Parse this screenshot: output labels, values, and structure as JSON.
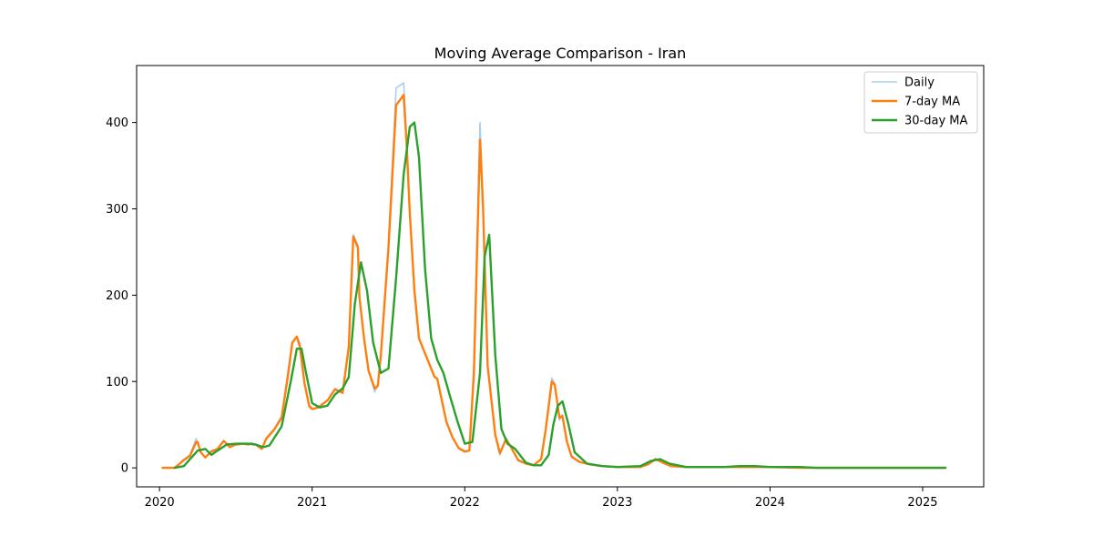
{
  "chart_data": {
    "type": "line",
    "title": "Moving Average Comparison - Iran",
    "xlabel": "",
    "ylabel": "",
    "xlim": [
      2019.85,
      2025.4
    ],
    "ylim": [
      -22,
      466
    ],
    "x_ticks": [
      2020,
      2021,
      2022,
      2023,
      2024,
      2025
    ],
    "x_tick_labels": [
      "2020",
      "2021",
      "2022",
      "2023",
      "2024",
      "2025"
    ],
    "y_ticks": [
      0,
      100,
      200,
      300,
      400
    ],
    "y_tick_labels": [
      "0",
      "100",
      "200",
      "300",
      "400"
    ],
    "grid": false,
    "legend_position": "top-right",
    "series": [
      {
        "name": "Daily",
        "color": "#aecde8",
        "style": "thin",
        "x": [
          2020.02,
          2020.1,
          2020.16,
          2020.2,
          2020.24,
          2020.25,
          2020.27,
          2020.3,
          2020.34,
          2020.38,
          2020.42,
          2020.44,
          2020.46,
          2020.5,
          2020.55,
          2020.58,
          2020.6,
          2020.63,
          2020.67,
          2020.7,
          2020.75,
          2020.8,
          2020.84,
          2020.87,
          2020.9,
          2020.92,
          2020.95,
          2020.98,
          2021.0,
          2021.04,
          2021.1,
          2021.15,
          2021.2,
          2021.24,
          2021.27,
          2021.3,
          2021.31,
          2021.34,
          2021.37,
          2021.41,
          2021.43,
          2021.45,
          2021.5,
          2021.55,
          2021.6,
          2021.62,
          2021.64,
          2021.67,
          2021.7,
          2021.75,
          2021.8,
          2021.82,
          2021.85,
          2021.88,
          2021.92,
          2021.96,
          2022.0,
          2022.03,
          2022.06,
          2022.1,
          2022.12,
          2022.15,
          2022.2,
          2022.23,
          2022.27,
          2022.3,
          2022.35,
          2022.4,
          2022.45,
          2022.5,
          2022.53,
          2022.57,
          2022.59,
          2022.62,
          2022.64,
          2022.67,
          2022.7,
          2022.75,
          2022.82,
          2022.9,
          2023.0,
          2023.15,
          2023.2,
          2023.25,
          2023.3,
          2023.35,
          2023.45,
          2023.6,
          2023.7,
          2023.8,
          2023.9,
          2024.0,
          2024.2,
          2024.3,
          2024.6,
          2024.9,
          2025.15
        ],
        "values": [
          0,
          0,
          10,
          15,
          34,
          28,
          18,
          12,
          20,
          22,
          32,
          28,
          24,
          27,
          28,
          27,
          29,
          27,
          22,
          35,
          45,
          60,
          110,
          145,
          152,
          145,
          100,
          70,
          68,
          70,
          78,
          92,
          86,
          140,
          270,
          258,
          200,
          150,
          112,
          88,
          95,
          130,
          260,
          440,
          446,
          380,
          300,
          210,
          150,
          128,
          105,
          103,
          78,
          52,
          35,
          22,
          18,
          20,
          120,
          400,
          310,
          120,
          38,
          15,
          35,
          25,
          8,
          5,
          3,
          10,
          45,
          104,
          98,
          55,
          62,
          30,
          12,
          7,
          4,
          2,
          1,
          1,
          4,
          11,
          5,
          2,
          1,
          1,
          1,
          1,
          1,
          1,
          0,
          0,
          0,
          0,
          0
        ]
      },
      {
        "name": "7-day MA",
        "color": "#ff7f0e",
        "style": "thick",
        "x": [
          2020.02,
          2020.1,
          2020.16,
          2020.2,
          2020.24,
          2020.25,
          2020.27,
          2020.3,
          2020.34,
          2020.38,
          2020.42,
          2020.44,
          2020.46,
          2020.5,
          2020.55,
          2020.58,
          2020.6,
          2020.63,
          2020.67,
          2020.7,
          2020.75,
          2020.8,
          2020.84,
          2020.87,
          2020.9,
          2020.92,
          2020.95,
          2020.98,
          2021.0,
          2021.04,
          2021.1,
          2021.15,
          2021.2,
          2021.24,
          2021.27,
          2021.3,
          2021.31,
          2021.34,
          2021.37,
          2021.41,
          2021.43,
          2021.45,
          2021.5,
          2021.55,
          2021.6,
          2021.62,
          2021.64,
          2021.67,
          2021.7,
          2021.75,
          2021.8,
          2021.82,
          2021.85,
          2021.88,
          2021.92,
          2021.96,
          2022.0,
          2022.03,
          2022.06,
          2022.1,
          2022.12,
          2022.15,
          2022.2,
          2022.23,
          2022.27,
          2022.3,
          2022.35,
          2022.4,
          2022.45,
          2022.5,
          2022.53,
          2022.57,
          2022.59,
          2022.62,
          2022.64,
          2022.67,
          2022.7,
          2022.75,
          2022.82,
          2022.9,
          2023.0,
          2023.15,
          2023.2,
          2023.25,
          2023.3,
          2023.35,
          2023.45,
          2023.6,
          2023.7,
          2023.8,
          2023.9,
          2024.0,
          2024.2,
          2024.3,
          2024.6,
          2024.9,
          2025.15
        ],
        "values": [
          0,
          0,
          9,
          14,
          30,
          30,
          18,
          12,
          19,
          22,
          31,
          28,
          24,
          27,
          28,
          27,
          28,
          27,
          22,
          34,
          44,
          58,
          105,
          145,
          152,
          140,
          98,
          72,
          68,
          70,
          78,
          91,
          87,
          140,
          268,
          255,
          198,
          150,
          112,
          92,
          95,
          130,
          255,
          420,
          432,
          372,
          295,
          205,
          150,
          128,
          106,
          103,
          78,
          53,
          35,
          23,
          19,
          20,
          110,
          380,
          300,
          118,
          38,
          17,
          33,
          25,
          9,
          5,
          3,
          10,
          44,
          100,
          96,
          58,
          60,
          30,
          13,
          7,
          4,
          2,
          1,
          1,
          4,
          10,
          6,
          2,
          1,
          1,
          1,
          1,
          1,
          1,
          0,
          0,
          0,
          0,
          0
        ]
      },
      {
        "name": "30-day MA",
        "color": "#2ca02c",
        "style": "thick",
        "x": [
          2020.1,
          2020.16,
          2020.2,
          2020.25,
          2020.3,
          2020.34,
          2020.38,
          2020.44,
          2020.5,
          2020.58,
          2020.63,
          2020.68,
          2020.72,
          2020.8,
          2020.86,
          2020.9,
          2020.93,
          2020.96,
          2021.0,
          2021.05,
          2021.1,
          2021.15,
          2021.2,
          2021.24,
          2021.28,
          2021.32,
          2021.36,
          2021.4,
          2021.45,
          2021.5,
          2021.55,
          2021.6,
          2021.64,
          2021.67,
          2021.7,
          2021.74,
          2021.78,
          2021.82,
          2021.86,
          2021.9,
          2021.95,
          2022.0,
          2022.05,
          2022.1,
          2022.13,
          2022.16,
          2022.2,
          2022.24,
          2022.28,
          2022.33,
          2022.4,
          2022.45,
          2022.5,
          2022.55,
          2022.58,
          2022.61,
          2022.64,
          2022.68,
          2022.72,
          2022.8,
          2022.9,
          2023.0,
          2023.15,
          2023.22,
          2023.28,
          2023.34,
          2023.45,
          2023.6,
          2023.7,
          2023.8,
          2023.9,
          2024.0,
          2024.2,
          2024.3,
          2024.6,
          2024.9,
          2025.15
        ],
        "values": [
          0,
          2,
          10,
          20,
          22,
          15,
          20,
          27,
          28,
          28,
          27,
          24,
          26,
          48,
          100,
          138,
          138,
          110,
          75,
          70,
          72,
          85,
          92,
          105,
          190,
          238,
          205,
          145,
          110,
          115,
          220,
          340,
          395,
          400,
          360,
          230,
          150,
          125,
          110,
          85,
          55,
          28,
          30,
          110,
          245,
          270,
          130,
          45,
          28,
          22,
          6,
          3,
          3,
          15,
          50,
          72,
          77,
          50,
          18,
          5,
          2,
          1,
          2,
          8,
          10,
          5,
          1,
          1,
          1,
          2,
          2,
          1,
          1,
          0,
          0,
          0,
          0
        ]
      }
    ]
  }
}
